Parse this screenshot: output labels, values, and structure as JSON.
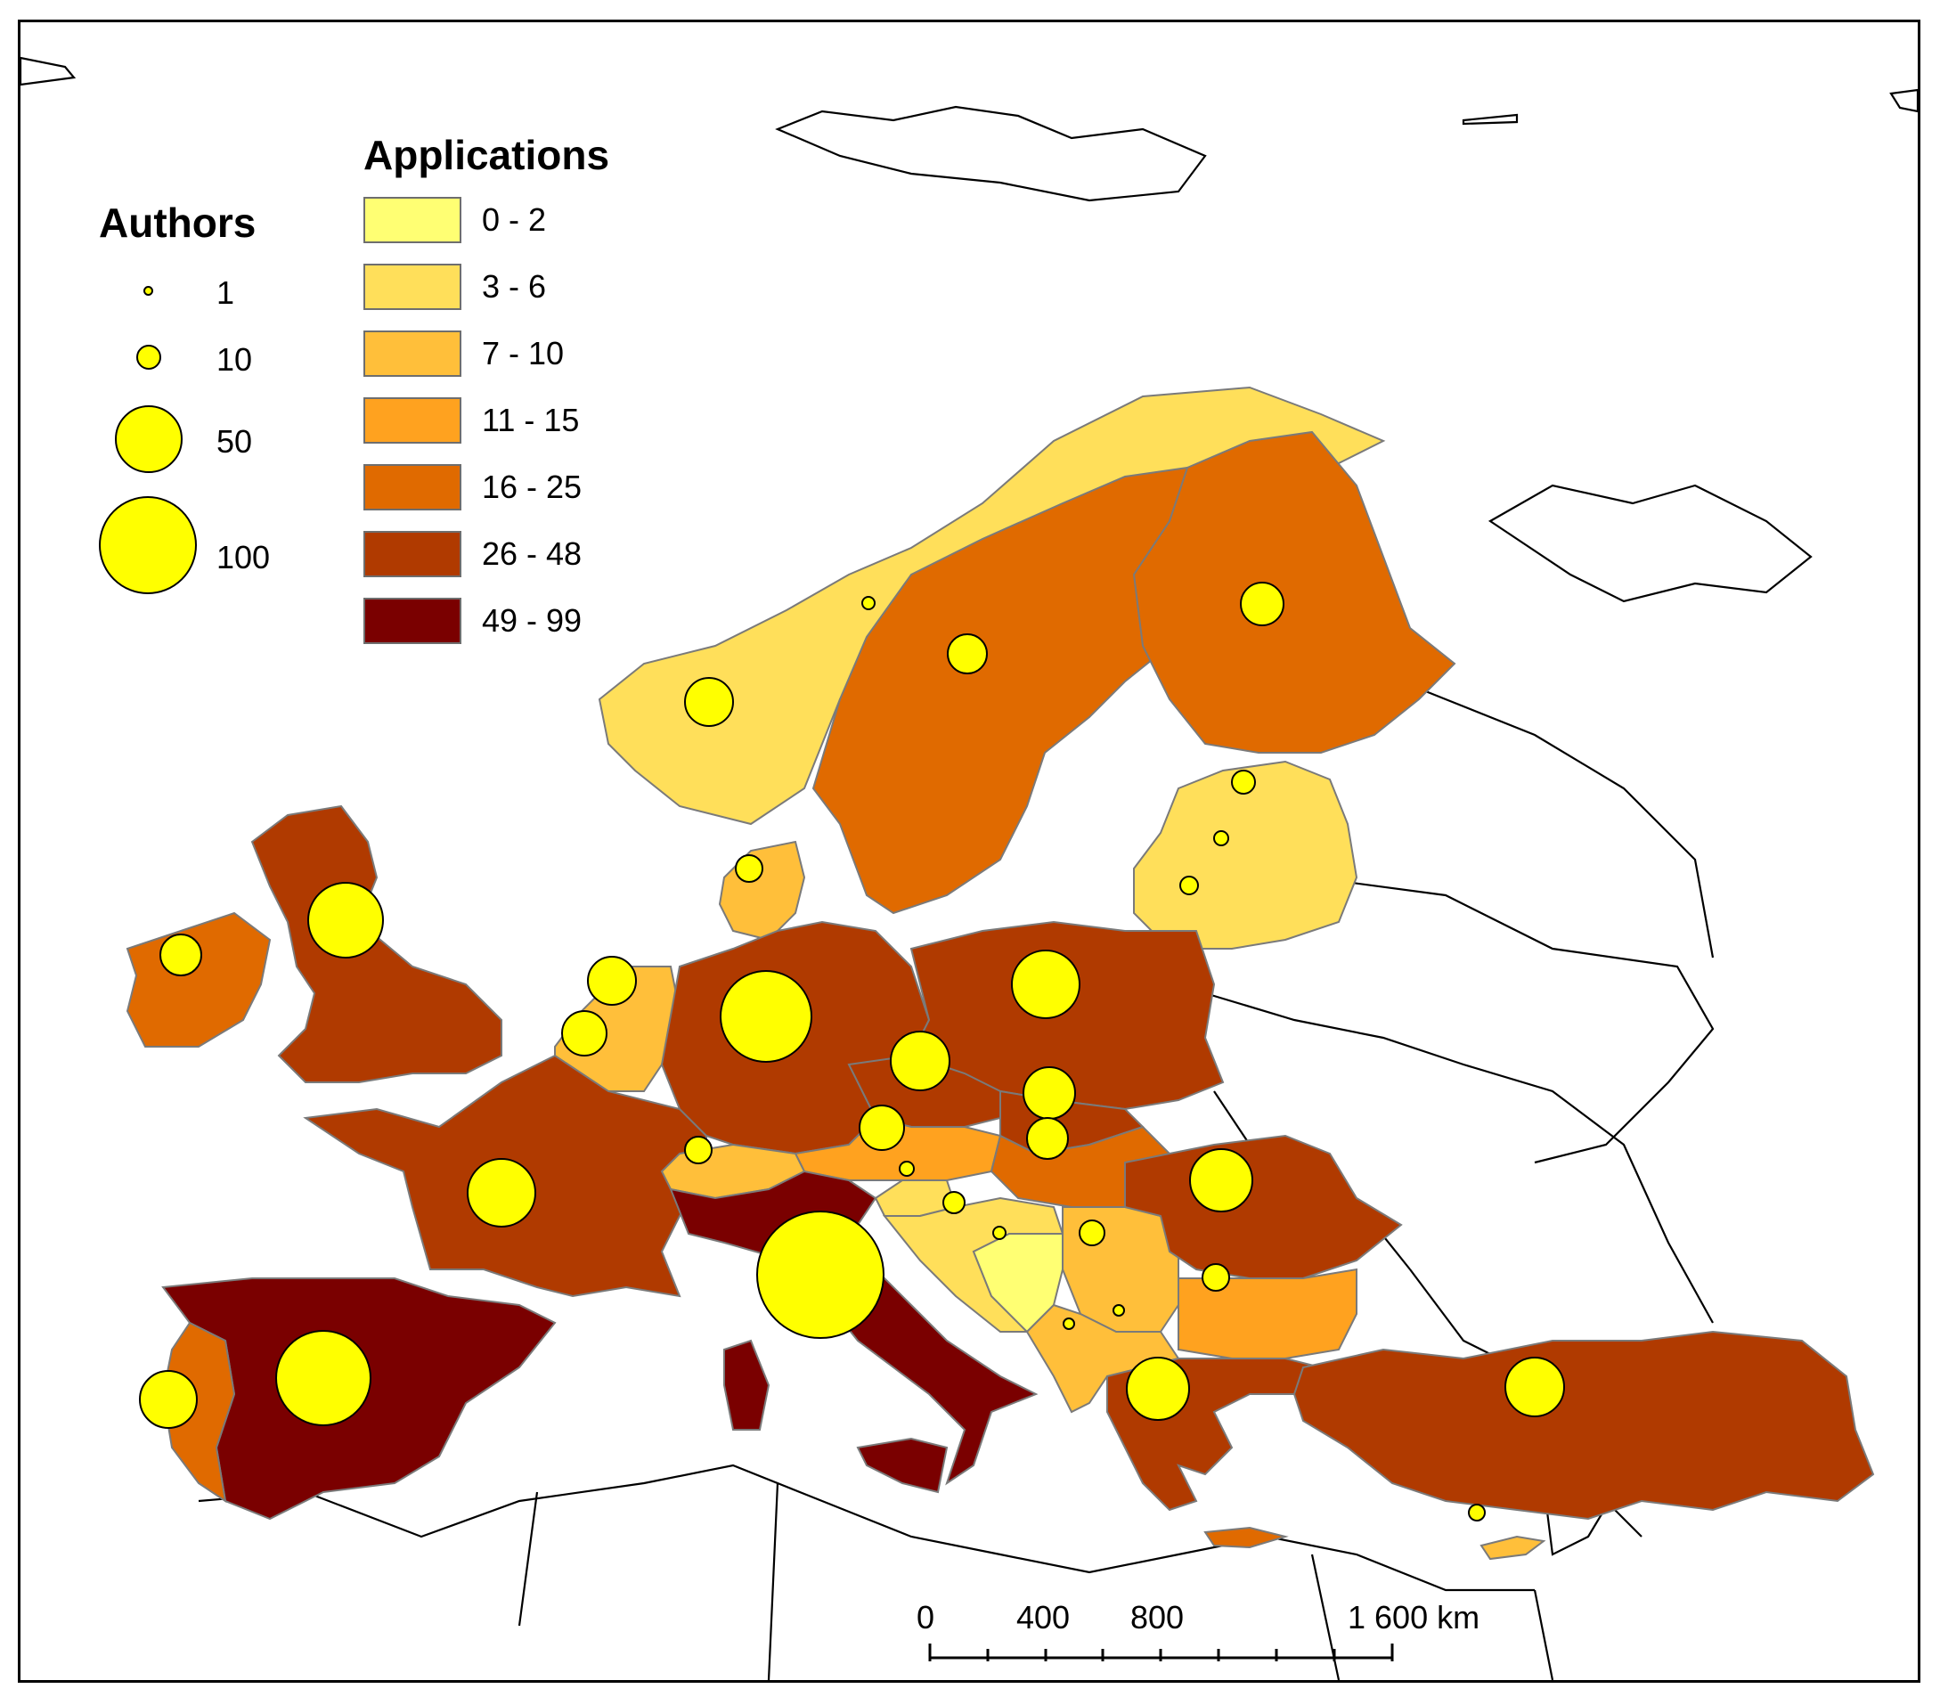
{
  "legend_authors": {
    "title": "Authors",
    "items": [
      {
        "label": "1",
        "value": 1
      },
      {
        "label": "10",
        "value": 10
      },
      {
        "label": "50",
        "value": 50
      },
      {
        "label": "100",
        "value": 100
      }
    ]
  },
  "legend_applications": {
    "title": "Applications",
    "classes": [
      {
        "label": "0 - 2",
        "color": "#ffff73"
      },
      {
        "label": "3 - 6",
        "color": "#ffdf5a"
      },
      {
        "label": "7 - 10",
        "color": "#ffbf3a"
      },
      {
        "label": "11 - 15",
        "color": "#ffa21f"
      },
      {
        "label": "16 - 25",
        "color": "#e06a00"
      },
      {
        "label": "26 - 48",
        "color": "#b03a00"
      },
      {
        "label": "49 - 99",
        "color": "#7a0000"
      }
    ]
  },
  "scale_bar": {
    "labels": [
      "0",
      "400",
      "800",
      "1 600 km"
    ]
  },
  "colors": {
    "bubble": "#ffff00",
    "background": "#ffffff",
    "border": "#000000"
  }
}
